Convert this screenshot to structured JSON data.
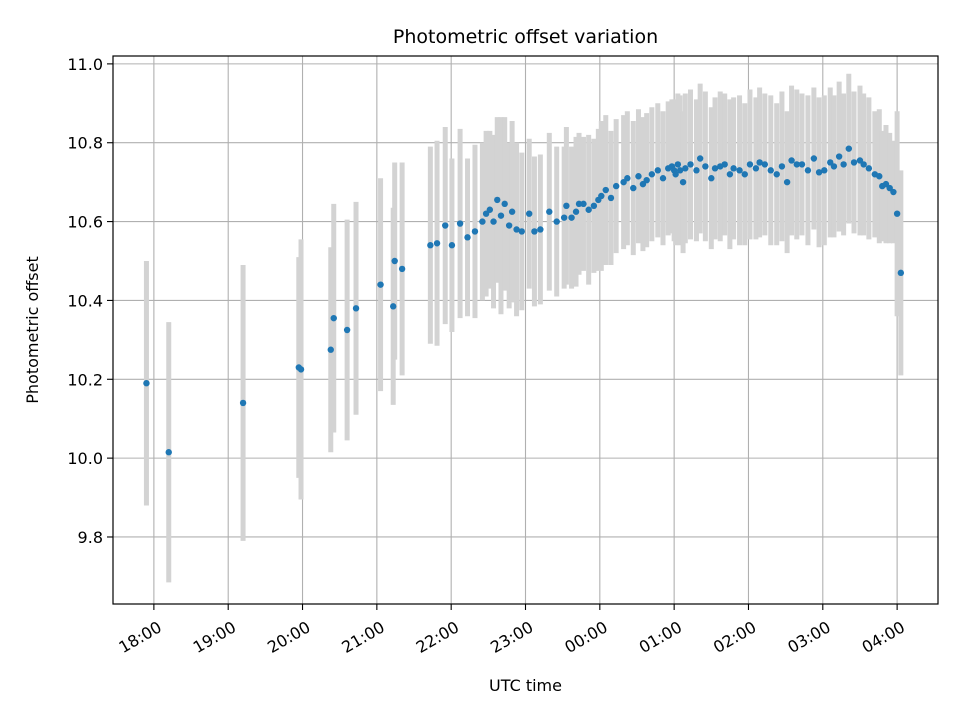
{
  "chart_data": {
    "type": "scatter",
    "title": "Photometric offset variation",
    "xlabel": "UTC time",
    "ylabel": "Photometric offset",
    "x_unit": "hours since 18:00 UTC (plotted as clock time)",
    "xlim": [
      -0.55,
      10.55
    ],
    "ylim": [
      9.63,
      11.02
    ],
    "grid": true,
    "x_ticks": [
      {
        "value": 0,
        "label": "18:00"
      },
      {
        "value": 1,
        "label": "19:00"
      },
      {
        "value": 2,
        "label": "20:00"
      },
      {
        "value": 3,
        "label": "21:00"
      },
      {
        "value": 4,
        "label": "22:00"
      },
      {
        "value": 5,
        "label": "23:00"
      },
      {
        "value": 6,
        "label": "00:00"
      },
      {
        "value": 7,
        "label": "01:00"
      },
      {
        "value": 8,
        "label": "02:00"
      },
      {
        "value": 9,
        "label": "03:00"
      },
      {
        "value": 10,
        "label": "04:00"
      }
    ],
    "y_ticks": [
      {
        "value": 9.8,
        "label": "9.8"
      },
      {
        "value": 10.0,
        "label": "10.0"
      },
      {
        "value": 10.2,
        "label": "10.2"
      },
      {
        "value": 10.4,
        "label": "10.4"
      },
      {
        "value": 10.6,
        "label": "10.6"
      },
      {
        "value": 10.8,
        "label": "10.8"
      },
      {
        "value": 11.0,
        "label": "11.0"
      }
    ],
    "colors": {
      "point": "#1f77b4",
      "errorbar": "#d3d3d3",
      "grid": "#b0b0b0"
    },
    "series": [
      {
        "x": [
          -0.1,
          0.2,
          1.2,
          1.95,
          1.98,
          2.38,
          2.42,
          2.6,
          2.72,
          3.05,
          3.22,
          3.24,
          3.34
        ],
        "y": [
          10.19,
          10.015,
          10.14,
          10.23,
          10.225,
          10.275,
          10.355,
          10.325,
          10.38,
          10.44,
          10.385,
          10.5,
          10.48
        ],
        "err": [
          0.31,
          0.33,
          0.35,
          0.28,
          0.33,
          0.26,
          0.29,
          0.28,
          0.27,
          0.27,
          0.25,
          0.25,
          0.27
        ]
      },
      {
        "x": [
          3.72,
          3.81,
          3.92,
          4.01,
          4.12,
          4.22,
          4.32,
          4.42,
          4.47,
          4.52,
          4.57,
          4.62,
          4.67,
          4.72,
          4.78,
          4.82,
          4.88,
          4.95,
          5.05,
          5.12,
          5.2,
          5.32,
          5.42,
          5.52,
          5.55,
          5.62,
          5.68,
          5.72,
          5.78,
          5.85,
          5.92,
          5.98,
          6.02,
          6.08,
          6.15,
          6.22,
          6.32,
          6.37,
          6.45,
          6.52,
          6.58,
          6.63,
          6.7,
          6.78,
          6.85,
          6.92,
          6.97
        ],
        "y": [
          10.54,
          10.545,
          10.59,
          10.54,
          10.595,
          10.56,
          10.575,
          10.6,
          10.62,
          10.63,
          10.6,
          10.655,
          10.615,
          10.645,
          10.59,
          10.625,
          10.58,
          10.575,
          10.62,
          10.575,
          10.58,
          10.625,
          10.6,
          10.61,
          10.64,
          10.61,
          10.625,
          10.645,
          10.645,
          10.63,
          10.64,
          10.655,
          10.665,
          10.68,
          10.66,
          10.69,
          10.7,
          10.71,
          10.685,
          10.715,
          10.695,
          10.705,
          10.72,
          10.73,
          10.71,
          10.735,
          10.74
        ],
        "err": [
          0.25,
          0.26,
          0.25,
          0.22,
          0.24,
          0.2,
          0.22,
          0.2,
          0.21,
          0.2,
          0.22,
          0.21,
          0.25,
          0.22,
          0.21,
          0.23,
          0.22,
          0.2,
          0.19,
          0.19,
          0.19,
          0.2,
          0.19,
          0.18,
          0.2,
          0.18,
          0.19,
          0.18,
          0.17,
          0.19,
          0.17,
          0.18,
          0.19,
          0.19,
          0.17,
          0.17,
          0.17,
          0.17,
          0.17,
          0.17,
          0.17,
          0.17,
          0.17,
          0.17,
          0.17,
          0.17,
          0.17
        ]
      },
      {
        "x": [
          7.0,
          7.02,
          7.05,
          7.08,
          7.12,
          7.15,
          7.22,
          7.3,
          7.35,
          7.42,
          7.5,
          7.55,
          7.62,
          7.68,
          7.75,
          7.8,
          7.88,
          7.95,
          8.02,
          8.1,
          8.15,
          8.22,
          8.3,
          8.38,
          8.45,
          8.52,
          8.58,
          8.65,
          8.72,
          8.8,
          8.88,
          8.95,
          9.02,
          9.1,
          9.15,
          9.22,
          9.28,
          9.35,
          9.42,
          9.5,
          9.55,
          9.62
        ],
        "y": [
          10.73,
          10.72,
          10.745,
          10.73,
          10.7,
          10.735,
          10.745,
          10.73,
          10.76,
          10.74,
          10.71,
          10.735,
          10.74,
          10.745,
          10.72,
          10.735,
          10.73,
          10.72,
          10.745,
          10.735,
          10.75,
          10.745,
          10.73,
          10.72,
          10.74,
          10.7,
          10.755,
          10.745,
          10.745,
          10.73,
          10.76,
          10.725,
          10.73,
          10.75,
          10.74,
          10.765,
          10.745,
          10.785,
          10.75,
          10.755,
          10.745,
          10.735
        ],
        "err": [
          0.18,
          0.18,
          0.18,
          0.19,
          0.18,
          0.19,
          0.19,
          0.18,
          0.19,
          0.19,
          0.18,
          0.18,
          0.19,
          0.18,
          0.19,
          0.18,
          0.19,
          0.18,
          0.19,
          0.18,
          0.19,
          0.18,
          0.19,
          0.18,
          0.19,
          0.18,
          0.19,
          0.19,
          0.18,
          0.19,
          0.18,
          0.19,
          0.19,
          0.19,
          0.18,
          0.19,
          0.18,
          0.19,
          0.18,
          0.19,
          0.18,
          0.18
        ]
      },
      {
        "x": [
          9.7,
          9.76,
          9.8,
          9.85,
          9.9,
          9.95,
          10.0,
          10.05
        ],
        "y": [
          10.72,
          10.715,
          10.69,
          10.695,
          10.685,
          10.675,
          10.62,
          10.47
        ],
        "err": [
          0.16,
          0.17,
          0.14,
          0.15,
          0.14,
          0.13,
          0.26,
          0.26
        ]
      }
    ]
  }
}
